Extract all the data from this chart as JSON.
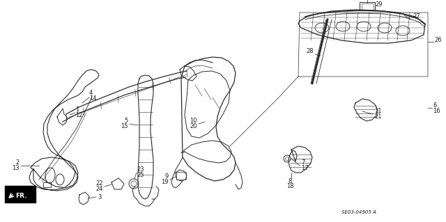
{
  "background_color": "#ffffff",
  "diagram_id": "SE03-04905 A",
  "text_color": "#1a1a1a",
  "line_color": "#2a2a2a",
  "font_size": 6.0,
  "diagram_font_size": 5.0,
  "fig_w": 6.4,
  "fig_h": 3.19,
  "dpi": 100
}
